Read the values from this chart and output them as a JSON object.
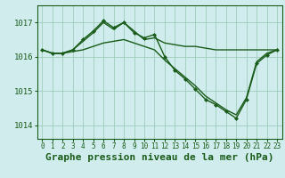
{
  "background_color": "#d0ecec",
  "grid_color": "#a0ccbb",
  "line_color": "#1a5c1a",
  "title": "Graphe pression niveau de la mer (hPa)",
  "xlim": [
    -0.5,
    23.5
  ],
  "ylim": [
    1013.6,
    1017.5
  ],
  "yticks": [
    1014,
    1015,
    1016,
    1017
  ],
  "xtick_labels": [
    "0",
    "1",
    "2",
    "3",
    "4",
    "5",
    "6",
    "7",
    "8",
    "9",
    "10",
    "11",
    "12",
    "13",
    "14",
    "15",
    "16",
    "17",
    "18",
    "19",
    "20",
    "21",
    "22",
    "23"
  ],
  "series": [
    {
      "x": [
        0,
        1,
        2,
        3,
        4,
        5,
        6,
        7,
        8,
        9,
        10,
        11,
        12,
        13,
        14,
        15,
        16,
        17,
        18,
        19,
        20,
        21,
        22,
        23
      ],
      "y": [
        1016.2,
        1016.1,
        1016.1,
        1016.2,
        1016.45,
        1016.7,
        1017.0,
        1016.8,
        1017.0,
        1016.75,
        1016.5,
        1016.55,
        1016.4,
        1016.35,
        1016.3,
        1016.3,
        1016.25,
        1016.2,
        1016.2,
        1016.2,
        1016.2,
        1016.2,
        1016.2,
        1016.2
      ],
      "has_markers": false,
      "linewidth": 1.0
    },
    {
      "x": [
        0,
        1,
        2,
        3,
        4,
        5,
        6,
        7,
        8,
        9,
        10,
        11,
        12,
        13,
        14,
        15,
        16,
        17,
        18,
        19,
        20,
        21,
        22,
        23
      ],
      "y": [
        1016.2,
        1016.1,
        1016.1,
        1016.2,
        1016.5,
        1016.75,
        1017.05,
        1016.85,
        1017.0,
        1016.7,
        1016.55,
        1016.65,
        1016.0,
        1015.6,
        1015.35,
        1015.05,
        1014.75,
        1014.6,
        1014.4,
        1014.2,
        1014.75,
        1015.8,
        1016.05,
        1016.2
      ],
      "has_markers": true,
      "linewidth": 1.0
    },
    {
      "x": [
        0,
        1,
        2,
        3,
        4,
        5,
        6,
        7,
        8,
        9,
        10,
        11,
        12,
        13,
        14,
        15,
        16,
        17,
        18,
        19,
        20,
        21,
        22,
        23
      ],
      "y": [
        1016.2,
        1016.1,
        1016.1,
        1016.15,
        1016.2,
        1016.3,
        1016.4,
        1016.45,
        1016.5,
        1016.4,
        1016.3,
        1016.2,
        1015.9,
        1015.65,
        1015.4,
        1015.15,
        1014.85,
        1014.65,
        1014.45,
        1014.3,
        1014.8,
        1015.85,
        1016.1,
        1016.2
      ],
      "has_markers": false,
      "linewidth": 1.0
    }
  ],
  "title_fontsize": 8,
  "tick_fontsize": 5.5,
  "ylabel_fontsize": 6.5
}
